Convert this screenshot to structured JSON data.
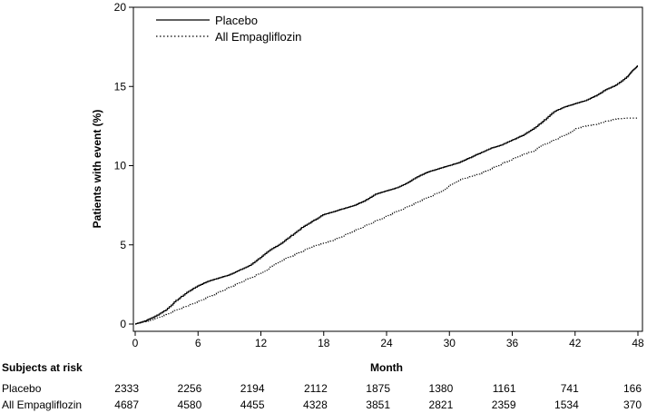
{
  "chart_data": {
    "type": "line",
    "title": "",
    "xlabel": "Month",
    "ylabel": "Patients with event (%)",
    "xlim": [
      0,
      48
    ],
    "ylim": [
      0,
      20
    ],
    "x_ticks": [
      0,
      6,
      12,
      18,
      24,
      30,
      36,
      42,
      48
    ],
    "y_ticks": [
      0,
      5,
      10,
      15,
      20
    ],
    "grid": false,
    "legend_position": "top-left",
    "step": true,
    "series": [
      {
        "name": "Placebo",
        "line_style": "solid",
        "color": "#000000",
        "x": [
          0,
          1,
          2,
          3,
          4,
          5,
          6,
          7,
          8,
          9,
          10,
          11,
          12,
          13,
          14,
          15,
          16,
          17,
          18,
          19,
          20,
          21,
          22,
          23,
          24,
          25,
          26,
          27,
          28,
          29,
          30,
          31,
          32,
          33,
          34,
          35,
          36,
          37,
          38,
          39,
          40,
          41,
          42,
          43,
          44,
          45,
          46,
          47,
          47.5,
          48
        ],
        "y": [
          0,
          0.2,
          0.5,
          0.9,
          1.5,
          2.0,
          2.4,
          2.7,
          2.9,
          3.1,
          3.4,
          3.7,
          4.2,
          4.7,
          5.1,
          5.6,
          6.1,
          6.5,
          6.9,
          7.1,
          7.3,
          7.5,
          7.8,
          8.2,
          8.4,
          8.6,
          8.9,
          9.3,
          9.6,
          9.8,
          10.0,
          10.2,
          10.5,
          10.8,
          11.1,
          11.3,
          11.6,
          11.9,
          12.3,
          12.8,
          13.4,
          13.7,
          13.9,
          14.1,
          14.4,
          14.8,
          15.1,
          15.6,
          16.0,
          16.3
        ]
      },
      {
        "name": "All Empagliflozin",
        "line_style": "dotted",
        "color": "#000000",
        "x": [
          0,
          1,
          2,
          3,
          4,
          5,
          6,
          7,
          8,
          9,
          10,
          11,
          12,
          13,
          14,
          15,
          16,
          17,
          18,
          19,
          20,
          21,
          22,
          23,
          24,
          25,
          26,
          27,
          28,
          29,
          30,
          31,
          32,
          33,
          34,
          35,
          36,
          37,
          38,
          39,
          40,
          41,
          42,
          43,
          44,
          45,
          46,
          47,
          48
        ],
        "y": [
          0,
          0.15,
          0.35,
          0.6,
          0.9,
          1.15,
          1.4,
          1.7,
          2.0,
          2.3,
          2.6,
          2.9,
          3.2,
          3.6,
          4.0,
          4.3,
          4.6,
          4.9,
          5.1,
          5.3,
          5.6,
          5.9,
          6.2,
          6.5,
          6.8,
          7.1,
          7.4,
          7.7,
          8.0,
          8.3,
          8.7,
          9.1,
          9.3,
          9.5,
          9.8,
          10.1,
          10.4,
          10.7,
          10.9,
          11.3,
          11.6,
          11.9,
          12.3,
          12.5,
          12.6,
          12.8,
          12.95,
          13.0,
          13.0
        ]
      }
    ],
    "risk_table": {
      "title": "Subjects at risk",
      "timepoints": [
        0,
        6,
        12,
        18,
        24,
        30,
        36,
        42,
        48
      ],
      "rows": [
        {
          "label": "Placebo",
          "values": [
            "2333",
            "2256",
            "2194",
            "2112",
            "1875",
            "1380",
            "1161",
            "741",
            "166"
          ]
        },
        {
          "label": "All Empagliflozin",
          "values": [
            "4687",
            "4580",
            "4455",
            "4328",
            "3851",
            "2821",
            "2359",
            "1534",
            "370"
          ]
        }
      ]
    }
  }
}
